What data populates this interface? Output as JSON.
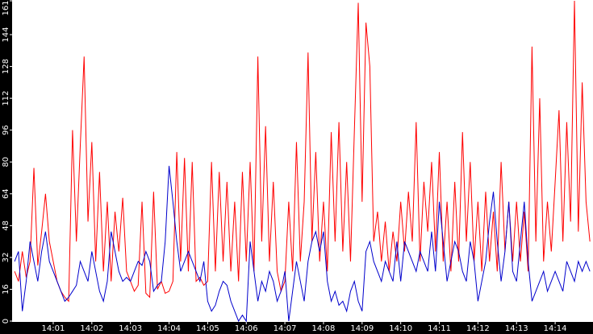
{
  "chart_data": {
    "type": "line",
    "x": [
      0,
      0.1,
      0.2,
      0.3,
      0.4,
      0.5,
      0.6,
      0.7,
      0.8,
      0.9,
      1,
      1.1,
      1.2,
      1.3,
      1.4,
      1.5,
      1.6,
      1.7,
      1.8,
      1.9,
      2,
      2.1,
      2.2,
      2.3,
      2.4,
      2.5,
      2.6,
      2.7,
      2.8,
      2.9,
      3,
      3.1,
      3.2,
      3.3,
      3.4,
      3.5,
      3.6,
      3.7,
      3.8,
      3.9,
      4,
      4.1,
      4.2,
      4.3,
      4.4,
      4.5,
      4.6,
      4.7,
      4.8,
      4.9,
      5,
      5.1,
      5.2,
      5.3,
      5.4,
      5.5,
      5.6,
      5.7,
      5.8,
      5.9,
      6,
      6.1,
      6.2,
      6.3,
      6.4,
      6.5,
      6.6,
      6.7,
      6.8,
      6.9,
      7,
      7.1,
      7.2,
      7.3,
      7.4,
      7.5,
      7.6,
      7.7,
      7.8,
      7.9,
      8,
      8.1,
      8.2,
      8.3,
      8.4,
      8.5,
      8.6,
      8.7,
      8.8,
      8.9,
      9,
      9.1,
      9.2,
      9.3,
      9.4,
      9.5,
      9.6,
      9.7,
      9.8,
      9.9,
      10,
      10.1,
      10.2,
      10.3,
      10.4,
      10.5,
      10.6,
      10.7,
      10.8,
      10.9,
      11,
      11.1,
      11.2,
      11.3,
      11.4,
      11.5,
      11.6,
      11.7,
      11.8,
      11.9,
      12,
      12.1,
      12.2,
      12.3,
      12.4,
      12.5,
      12.6,
      12.7,
      12.8,
      12.9,
      13,
      13.1,
      13.2,
      13.3,
      13.4,
      13.5,
      13.6,
      13.7,
      13.8,
      13.9,
      14,
      14.1,
      14.2,
      14.3,
      14.4,
      14.5,
      14.6,
      14.7,
      14.8,
      14.9
    ],
    "series": [
      {
        "color": "#ff0000",
        "values": [
          25,
          20,
          35,
          22,
          30,
          77,
          28,
          45,
          64,
          40,
          30,
          20,
          15,
          12,
          10,
          96,
          40,
          88,
          133,
          50,
          90,
          30,
          75,
          25,
          60,
          20,
          55,
          35,
          62,
          25,
          20,
          15,
          18,
          60,
          14,
          12,
          65,
          16,
          20,
          14,
          15,
          20,
          85,
          30,
          82,
          25,
          80,
          20,
          22,
          18,
          20,
          80,
          25,
          75,
          30,
          70,
          25,
          60,
          20,
          75,
          30,
          80,
          25,
          133,
          40,
          98,
          30,
          70,
          25,
          15,
          20,
          60,
          25,
          90,
          30,
          60,
          135,
          40,
          85,
          30,
          60,
          25,
          95,
          40,
          100,
          35,
          80,
          30,
          96,
          160,
          60,
          150,
          128,
          40,
          55,
          30,
          50,
          25,
          45,
          30,
          60,
          35,
          65,
          40,
          100,
          30,
          70,
          45,
          80,
          35,
          85,
          30,
          60,
          25,
          70,
          30,
          95,
          40,
          80,
          30,
          60,
          25,
          65,
          30,
          55,
          25,
          80,
          35,
          60,
          30,
          60,
          30,
          55,
          25,
          138,
          40,
          112,
          30,
          60,
          35,
          70,
          106,
          40,
          100,
          50,
          161,
          45,
          120,
          60,
          40
        ]
      },
      {
        "color": "#0000cc",
        "values": [
          30,
          35,
          5,
          20,
          40,
          30,
          20,
          35,
          45,
          30,
          25,
          20,
          15,
          10,
          12,
          15,
          18,
          30,
          25,
          20,
          35,
          25,
          15,
          10,
          20,
          45,
          35,
          25,
          20,
          22,
          20,
          25,
          30,
          28,
          35,
          30,
          15,
          18,
          20,
          40,
          78,
          60,
          40,
          25,
          30,
          35,
          30,
          25,
          20,
          30,
          10,
          5,
          8,
          15,
          20,
          18,
          10,
          5,
          0,
          3,
          0,
          40,
          25,
          10,
          20,
          15,
          25,
          20,
          10,
          15,
          25,
          0,
          15,
          30,
          20,
          10,
          30,
          40,
          45,
          35,
          45,
          20,
          10,
          15,
          8,
          10,
          5,
          15,
          20,
          10,
          5,
          35,
          40,
          30,
          25,
          20,
          30,
          25,
          20,
          40,
          20,
          40,
          35,
          30,
          25,
          35,
          30,
          25,
          45,
          25,
          60,
          40,
          20,
          30,
          40,
          35,
          25,
          20,
          40,
          30,
          10,
          20,
          30,
          50,
          65,
          40,
          20,
          35,
          60,
          25,
          20,
          40,
          60,
          30,
          10,
          15,
          20,
          25,
          15,
          20,
          25,
          20,
          15,
          30,
          25,
          20,
          30,
          25,
          30,
          25
        ]
      }
    ],
    "xlim": [
      -0.065,
      14.98
    ],
    "xticks": [
      {
        "value": 1,
        "label": "14:01"
      },
      {
        "value": 2,
        "label": "14:02"
      },
      {
        "value": 3,
        "label": "14:03"
      },
      {
        "value": 4,
        "label": "14:04"
      },
      {
        "value": 5,
        "label": "14:05"
      },
      {
        "value": 6,
        "label": "14:06"
      },
      {
        "value": 7,
        "label": "14:07"
      },
      {
        "value": 8,
        "label": "14:08"
      },
      {
        "value": 9,
        "label": "14:09"
      },
      {
        "value": 10,
        "label": "14:10"
      },
      {
        "value": 11,
        "label": "14:11"
      },
      {
        "value": 12,
        "label": "14:12"
      },
      {
        "value": 13,
        "label": "14:13"
      },
      {
        "value": 14,
        "label": "14:14"
      }
    ],
    "ylim": [
      0,
      161
    ],
    "yticks": [
      0,
      16,
      32,
      48,
      64,
      80,
      96,
      112,
      128,
      144,
      161
    ]
  }
}
